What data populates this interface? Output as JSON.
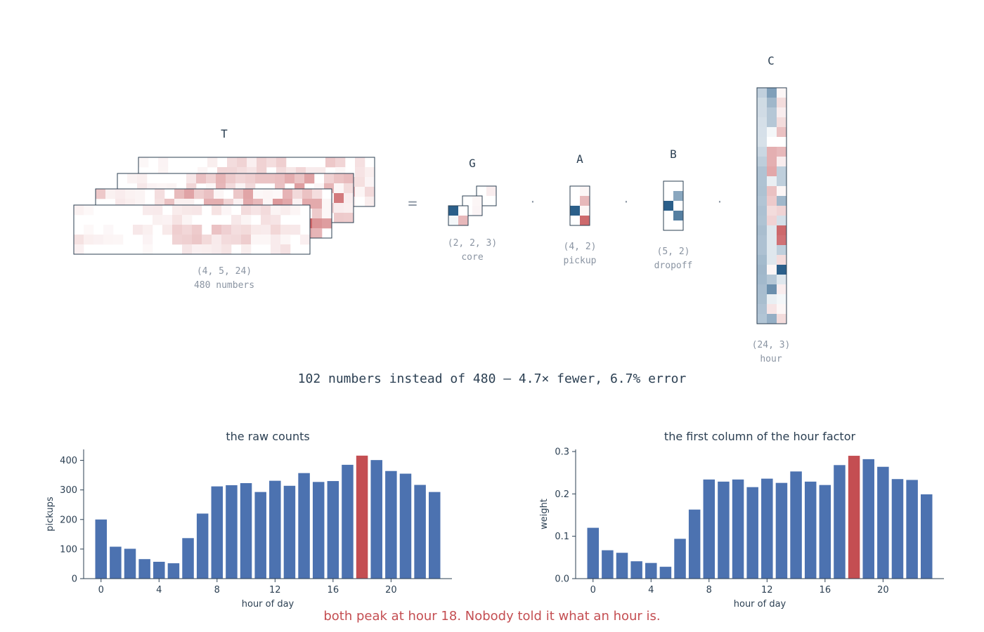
{
  "diagram": {
    "tensor_T": {
      "label": "T",
      "shape": "(4, 5, 24)",
      "note": "480 numbers"
    },
    "equals": "=",
    "dot": "·",
    "factors": [
      {
        "key": "G",
        "label": "G",
        "shape": "(2, 2, 3)",
        "note": "core"
      },
      {
        "key": "A",
        "label": "A",
        "shape": "(4, 2)",
        "note": "pickup"
      },
      {
        "key": "B",
        "label": "B",
        "shape": "(5, 2)",
        "note": "dropoff"
      },
      {
        "key": "C",
        "label": "C",
        "shape": "(24, 3)",
        "note": "hour"
      }
    ],
    "summary": "102 numbers instead of 480 — 4.7× fewer, 6.7% error",
    "colors": {
      "outline": "#2b3f52",
      "positive": "#c44e52",
      "negative": "#2b5f8a",
      "text": "#2b3f52",
      "muted": "#8a94a2"
    }
  },
  "chart_data": [
    {
      "type": "bar",
      "title": "the raw counts",
      "xlabel": "hour of day",
      "ylabel": "pickups",
      "x": [
        0,
        1,
        2,
        3,
        4,
        5,
        6,
        7,
        8,
        9,
        10,
        11,
        12,
        13,
        14,
        15,
        16,
        17,
        18,
        19,
        20,
        21,
        22,
        23
      ],
      "values": [
        200,
        108,
        101,
        66,
        57,
        52,
        137,
        220,
        312,
        316,
        323,
        293,
        331,
        314,
        357,
        327,
        330,
        385,
        416,
        401,
        364,
        355,
        317,
        293
      ],
      "xticks": [
        0,
        4,
        8,
        12,
        16,
        20
      ],
      "yticks": [
        0,
        100,
        200,
        300,
        400
      ],
      "ylim": [
        0,
        437
      ],
      "highlight_index": 18,
      "bar_color": "#4c72b0",
      "highlight_color": "#c44e52",
      "grid": false
    },
    {
      "type": "bar",
      "title": "the first column of the hour factor",
      "xlabel": "hour of day",
      "ylabel": "weight",
      "x": [
        0,
        1,
        2,
        3,
        4,
        5,
        6,
        7,
        8,
        9,
        10,
        11,
        12,
        13,
        14,
        15,
        16,
        17,
        18,
        19,
        20,
        21,
        22,
        23
      ],
      "values": [
        0.12,
        0.067,
        0.061,
        0.041,
        0.037,
        0.028,
        0.094,
        0.163,
        0.234,
        0.229,
        0.234,
        0.216,
        0.236,
        0.226,
        0.253,
        0.229,
        0.221,
        0.268,
        0.29,
        0.282,
        0.264,
        0.235,
        0.233,
        0.199
      ],
      "xticks": [
        0,
        4,
        8,
        12,
        16,
        20
      ],
      "yticks": [
        0.0,
        0.1,
        0.2,
        0.3
      ],
      "ytick_labels": [
        "0.0",
        "0.1",
        "0.2",
        "0.3"
      ],
      "ylim": [
        0,
        0.305
      ],
      "highlight_index": 18,
      "bar_color": "#4c72b0",
      "highlight_color": "#c44e52",
      "grid": false
    }
  ],
  "caption": "both peak at hour 18. Nobody told it what an hour is."
}
